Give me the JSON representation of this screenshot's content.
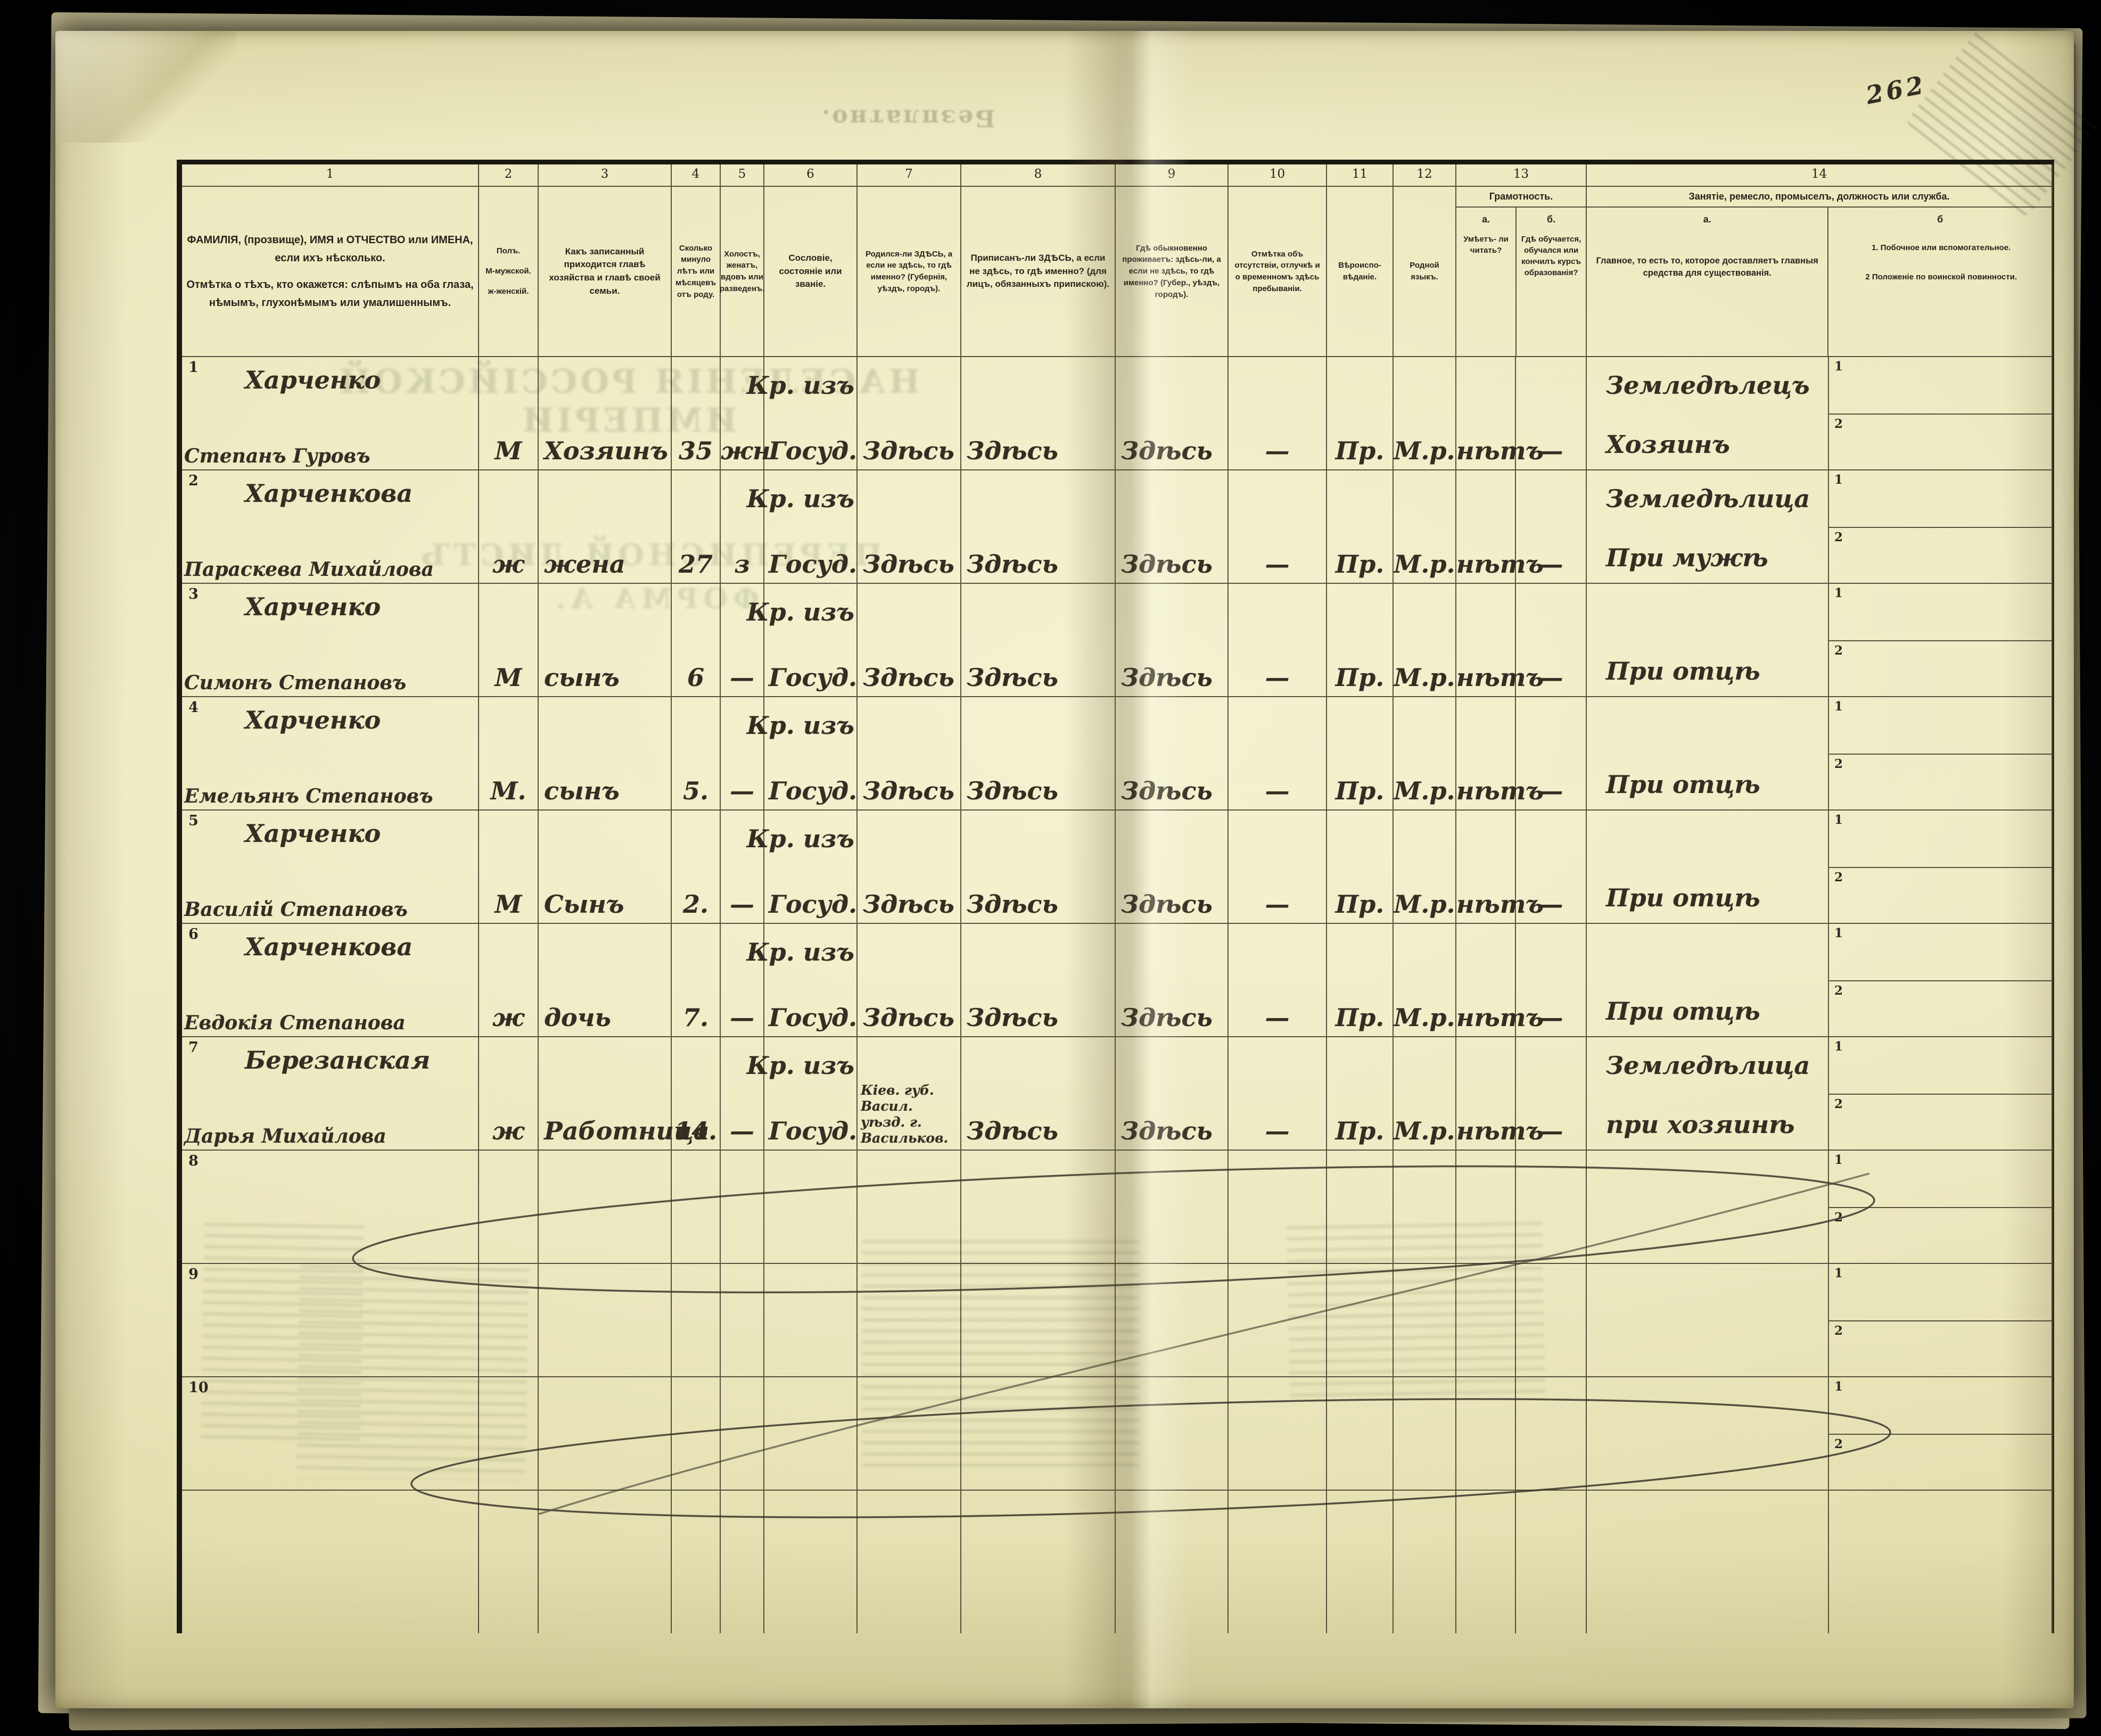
{
  "page": {
    "number": "262",
    "ghost_reverse_text": {
      "free_of_charge": "Безплатно.",
      "census_title_line": "НАСЕЛЕНІЯ РОССІЙСКОЙ ИМПЕРІИ",
      "census_sheet_line": "ПЕРЕПИСНОЙ ЛИСТЪ",
      "form_line": "ФОРМА А."
    }
  },
  "header": {
    "nums": [
      "1",
      "2",
      "3",
      "4",
      "5",
      "6",
      "7",
      "8",
      "9",
      "10",
      "11",
      "12",
      "13",
      "14"
    ],
    "c1a": "ФАМИЛІЯ, (прозвище), ИМЯ и ОТЧЕСТВО или ИМЕНА, если ихъ нѣсколько.",
    "c1b": "Отмѣтка о тѣхъ, кто окажется: слѣпымъ на оба глаза, нѣмымъ, глухонѣмымъ или умалишеннымъ.",
    "c2a": "Полъ.",
    "c2b": "М-мужской.",
    "c2c": "ж-женскій.",
    "c3": "Какъ записанный приходится главѣ хозяйства и главѣ своей семьи.",
    "c4": "Сколько минуло лѣтъ или мѣсяцевъ отъ роду.",
    "c5": "Холостъ, женатъ, вдовъ или разведенъ.",
    "c6": "Сословіе, состояніе или званіе.",
    "c7": "Родился-ли ЗДѢСЬ, а если не здѣсь, то гдѣ именно? (Губернія, уѣздъ, городъ).",
    "c8": "Приписанъ-ли ЗДѢСЬ, а если не здѣсь, то гдѣ именно? (для лицъ, обязанныхъ припискою).",
    "c9": "Гдѣ обыкновенно проживаетъ: здѣсь-ли, а если не здѣсь, то гдѣ именно? (Губер., уѣздъ, городъ).",
    "c10": "Отмѣтка объ отсутствіи, отлучкѣ и о временномъ здѣсь пребываніи.",
    "c11": "Вѣроиспо- вѣданіе.",
    "c12": "Родной языкъ.",
    "c13_title": "Грамотность.",
    "c13a_label": "а.",
    "c13a": "Умѣетъ- ли читать?",
    "c13b_label": "б.",
    "c13b": "Гдѣ обучается, обучался или кончилъ курсъ образованія?",
    "c14_title": "Занятіе, ремесло, промыселъ, должность или служба.",
    "c14a_label": "а.",
    "c14a": "Главное, то есть то, которое доставляетъ главныя средства для существованія.",
    "c14b_label": "б",
    "c14b_1": "1.  Побочное или вспомогательное.",
    "c14b_2": "2   Положеніе по воинской повинности."
  },
  "table": {
    "row_sub_labels": [
      "1",
      "2"
    ]
  },
  "rows": [
    {
      "num": "1",
      "surname": "Харченко",
      "name": "Степанъ Гуровъ",
      "sex": "М",
      "relation": "Хозяинъ",
      "age": "35",
      "marital": "жн",
      "estate1": "Кр. изъ",
      "estate2": "Госуд.",
      "born": "Здѣсь",
      "registered": "Здѣсь",
      "resides": "Здѣсь",
      "absence": "—",
      "religion": "Пр.",
      "language": "М.р.",
      "literate": "нѣтъ",
      "educated": "—",
      "occupation_main": "Земледѣлецъ",
      "occupation_note": "Хозяинъ"
    },
    {
      "num": "2",
      "surname": "Харченкова",
      "name": "Параскева Михайлова",
      "sex": "ж",
      "relation": "жена",
      "age": "27",
      "marital": "з",
      "estate1": "Кр. изъ",
      "estate2": "Госуд.",
      "born": "Здѣсь",
      "registered": "Здѣсь",
      "resides": "Здѣсь",
      "absence": "—",
      "religion": "Пр.",
      "language": "М.р.",
      "literate": "нѣтъ",
      "educated": "—",
      "occupation_main": "Земледѣлица",
      "occupation_note": "При мужѣ"
    },
    {
      "num": "3",
      "surname": "Харченко",
      "name": "Симонъ Степановъ",
      "sex": "М",
      "relation": "сынъ",
      "age": "6",
      "marital": "—",
      "estate1": "Кр. изъ",
      "estate2": "Госуд.",
      "born": "Здѣсь",
      "registered": "Здѣсь",
      "resides": "Здѣсь",
      "absence": "—",
      "religion": "Пр.",
      "language": "М.р.",
      "literate": "нѣтъ",
      "educated": "—",
      "occupation_main": "",
      "occupation_note": "При отцѣ"
    },
    {
      "num": "4",
      "surname": "Харченко",
      "name": "Емельянъ Степановъ",
      "sex": "М.",
      "relation": "сынъ",
      "age": "5.",
      "marital": "—",
      "estate1": "Кр. изъ",
      "estate2": "Госуд.",
      "born": "Здѣсь",
      "registered": "Здѣсь",
      "resides": "Здѣсь",
      "absence": "—",
      "religion": "Пр.",
      "language": "М.р.",
      "literate": "нѣтъ",
      "educated": "—",
      "occupation_main": "",
      "occupation_note": "При отцѣ"
    },
    {
      "num": "5",
      "surname": "Харченко",
      "name": "Василій Степановъ",
      "sex": "М",
      "relation": "Сынъ",
      "age": "2.",
      "marital": "—",
      "estate1": "Кр. изъ",
      "estate2": "Госуд.",
      "born": "Здѣсь",
      "registered": "Здѣсь",
      "resides": "Здѣсь",
      "absence": "—",
      "religion": "Пр.",
      "language": "М.р.",
      "literate": "нѣтъ",
      "educated": "—",
      "occupation_main": "",
      "occupation_note": "При отцѣ"
    },
    {
      "num": "6",
      "surname": "Харченкова",
      "name": "Евдокія Степанова",
      "sex": "ж",
      "relation": "дочь",
      "age": "7.",
      "marital": "—",
      "estate1": "Кр. изъ",
      "estate2": "Госуд.",
      "born": "Здѣсь",
      "registered": "Здѣсь",
      "resides": "Здѣсь",
      "absence": "—",
      "religion": "Пр.",
      "language": "М.р.",
      "literate": "нѣтъ",
      "educated": "—",
      "occupation_main": "",
      "occupation_note": "При отцѣ"
    },
    {
      "num": "7",
      "surname": "Березанская",
      "name": "Дарья Михайлова",
      "sex": "ж",
      "relation": "Работница",
      "age": "14.",
      "marital": "—",
      "estate1": "Кр. изъ",
      "estate2": "Госуд.",
      "born": "Кіев. губ. Васил. уѣзд. г. Васильков.",
      "registered": "Здѣсь",
      "resides": "Здѣсь",
      "absence": "—",
      "religion": "Пр.",
      "language": "М.р.",
      "literate": "нѣтъ",
      "educated": "—",
      "occupation_main": "Земледѣлица",
      "occupation_note": "при хозяинѣ"
    },
    {
      "num": "8",
      "surname": "",
      "name": "",
      "sex": "",
      "relation": "",
      "age": "",
      "marital": "",
      "estate1": "",
      "estate2": "",
      "born": "",
      "registered": "",
      "resides": "",
      "absence": "",
      "religion": "",
      "language": "",
      "literate": "",
      "educated": "",
      "occupation_main": "",
      "occupation_note": ""
    },
    {
      "num": "9",
      "surname": "",
      "name": "",
      "sex": "",
      "relation": "",
      "age": "",
      "marital": "",
      "estate1": "",
      "estate2": "",
      "born": "",
      "registered": "",
      "resides": "",
      "absence": "",
      "religion": "",
      "language": "",
      "literate": "",
      "educated": "",
      "occupation_main": "",
      "occupation_note": ""
    },
    {
      "num": "10",
      "surname": "",
      "name": "",
      "sex": "",
      "relation": "",
      "age": "",
      "marital": "",
      "estate1": "",
      "estate2": "",
      "born": "",
      "registered": "",
      "resides": "",
      "absence": "",
      "religion": "",
      "language": "",
      "literate": "",
      "educated": "",
      "occupation_main": "",
      "occupation_note": ""
    }
  ]
}
